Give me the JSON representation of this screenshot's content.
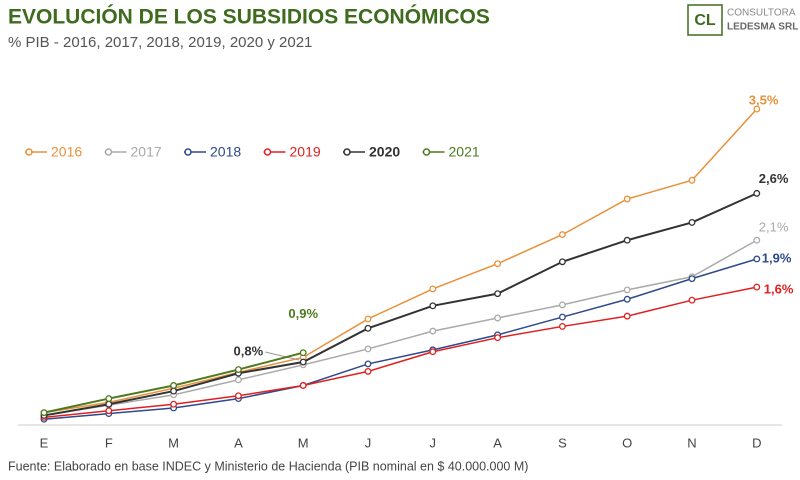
{
  "chart_data": {
    "type": "line",
    "title": "EVOLUCIÓN DE LOS SUBSIDIOS ECONÓMICOS",
    "subtitle": "% PIB - 2016, 2017, 2018, 2019, 2020 y 2021",
    "logo": {
      "mark": "CL",
      "line1": "CONSULTORA",
      "line2": "LEDESMA SRL"
    },
    "source": "Fuente: Elaborado en base INDEC y Ministerio de Hacienda (PIB nominal en $ 40.000.000 M)",
    "categories": [
      "E",
      "F",
      "M",
      "A",
      "M",
      "J",
      "J",
      "A",
      "S",
      "O",
      "N",
      "D"
    ],
    "series": [
      {
        "name": "2016",
        "color": "#e8913a",
        "values": [
          0.26,
          0.37,
          0.52,
          0.69,
          0.85,
          1.26,
          1.58,
          1.85,
          2.16,
          2.54,
          2.74,
          3.5
        ],
        "value_labels": [
          null,
          null,
          null,
          null,
          null,
          null,
          null,
          null,
          null,
          null,
          null,
          "3,5%"
        ]
      },
      {
        "name": "2017",
        "color": "#aaaaaa",
        "values": [
          0.23,
          0.34,
          0.45,
          0.61,
          0.77,
          0.94,
          1.13,
          1.27,
          1.41,
          1.57,
          1.71,
          2.1
        ],
        "value_labels": [
          null,
          null,
          null,
          null,
          null,
          null,
          null,
          null,
          null,
          null,
          null,
          "2,1%"
        ]
      },
      {
        "name": "2018",
        "color": "#2e4a8a",
        "values": [
          0.19,
          0.25,
          0.31,
          0.41,
          0.55,
          0.78,
          0.93,
          1.09,
          1.28,
          1.47,
          1.69,
          1.9
        ],
        "value_labels": [
          null,
          null,
          null,
          null,
          null,
          null,
          null,
          null,
          null,
          null,
          null,
          "1,9%"
        ]
      },
      {
        "name": "2019",
        "color": "#e02020",
        "values": [
          0.21,
          0.28,
          0.35,
          0.44,
          0.55,
          0.7,
          0.91,
          1.06,
          1.18,
          1.29,
          1.46,
          1.6
        ],
        "value_labels": [
          null,
          null,
          null,
          null,
          null,
          null,
          null,
          null,
          null,
          null,
          null,
          "1,6%"
        ]
      },
      {
        "name": "2020",
        "color": "#333333",
        "values": [
          0.23,
          0.35,
          0.49,
          0.68,
          0.8,
          1.16,
          1.4,
          1.53,
          1.87,
          2.1,
          2.29,
          2.6
        ],
        "value_labels": [
          null,
          null,
          null,
          null,
          "0,8%",
          null,
          null,
          null,
          null,
          null,
          null,
          "2,6%"
        ]
      },
      {
        "name": "2021",
        "color": "#4d7a1f",
        "values": [
          0.26,
          0.41,
          0.55,
          0.72,
          0.9,
          null,
          null,
          null,
          null,
          null,
          null,
          null
        ],
        "value_labels": [
          null,
          null,
          null,
          null,
          "0,9%",
          null,
          null,
          null,
          null,
          null,
          null,
          null
        ]
      }
    ]
  }
}
